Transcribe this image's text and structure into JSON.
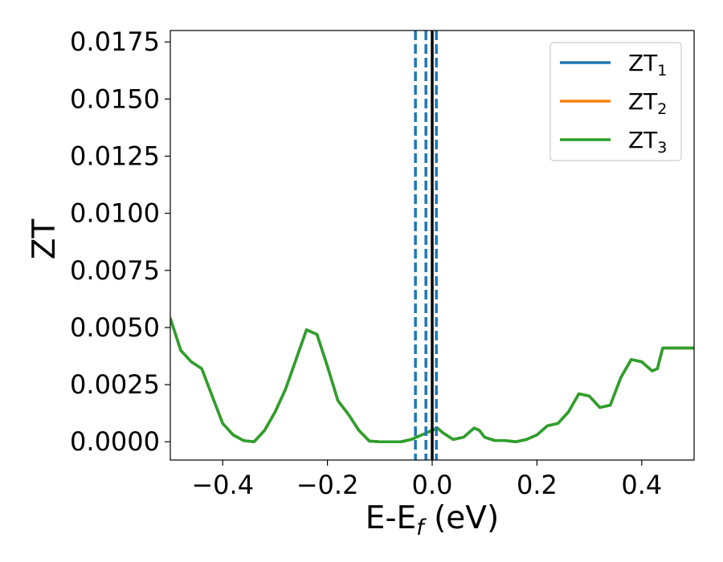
{
  "chart_data": {
    "type": "line",
    "xlabel": "E-E",
    "xlabel_sub": "f",
    "xlabel_unit": " (eV)",
    "ylabel": "ZT",
    "xlim": [
      -0.5,
      0.5
    ],
    "ylim": [
      -0.0008,
      0.018
    ],
    "xticks": [
      -0.4,
      -0.2,
      0.0,
      0.2,
      0.4
    ],
    "xtick_labels": [
      "−0.4",
      "−0.2",
      "0.0",
      "0.2",
      "0.4"
    ],
    "yticks": [
      0.0,
      0.0025,
      0.005,
      0.0075,
      0.01,
      0.0125,
      0.015,
      0.0175
    ],
    "ytick_labels": [
      "0.0000",
      "0.0025",
      "0.0050",
      "0.0075",
      "0.0100",
      "0.0125",
      "0.0150",
      "0.0175"
    ],
    "grid": false,
    "legend_position": "top-right",
    "series": [
      {
        "name": "ZT",
        "sub": "1",
        "color": "#1f77b4",
        "x": [
          -0.5,
          -0.48,
          -0.46,
          -0.44,
          -0.42,
          -0.4,
          -0.38,
          -0.36,
          -0.34,
          -0.32,
          -0.3,
          -0.28,
          -0.26,
          -0.24,
          -0.22,
          -0.2,
          -0.18,
          -0.16,
          -0.14,
          -0.12,
          -0.1,
          -0.08,
          -0.06,
          -0.04,
          -0.02,
          0.0,
          0.01,
          0.02,
          0.04,
          0.06,
          0.08,
          0.09,
          0.1,
          0.12,
          0.14,
          0.16,
          0.18,
          0.2,
          0.22,
          0.24,
          0.26,
          0.28,
          0.3,
          0.32,
          0.34,
          0.36,
          0.38,
          0.4,
          0.42,
          0.43,
          0.44,
          0.46,
          0.48,
          0.5
        ],
        "y": [
          0.0054,
          0.004,
          0.0035,
          0.0032,
          0.002,
          0.0008,
          0.0003,
          5e-05,
          0.0,
          0.0005,
          0.0013,
          0.0023,
          0.0036,
          0.0049,
          0.0047,
          0.0033,
          0.0018,
          0.0012,
          0.0005,
          3e-05,
          0.0,
          0.0,
          0.0,
          0.0001,
          0.0003,
          0.0005,
          0.0006,
          0.0004,
          0.0001,
          0.0002,
          0.0006,
          0.0005,
          0.0002,
          5e-05,
          5e-05,
          0.0,
          0.0001,
          0.0003,
          0.0007,
          0.0008,
          0.0013,
          0.0021,
          0.002,
          0.0015,
          0.0016,
          0.0028,
          0.0036,
          0.0035,
          0.0031,
          0.0032,
          0.0041,
          0.0041,
          0.0041,
          0.0041
        ]
      },
      {
        "name": "ZT",
        "sub": "2",
        "color": "#ff7f0e",
        "x": [
          -0.5,
          -0.48,
          -0.46,
          -0.44,
          -0.42,
          -0.4,
          -0.38,
          -0.36,
          -0.34,
          -0.32,
          -0.3,
          -0.28,
          -0.26,
          -0.24,
          -0.22,
          -0.2,
          -0.18,
          -0.16,
          -0.14,
          -0.12,
          -0.1,
          -0.08,
          -0.06,
          -0.04,
          -0.02,
          0.0,
          0.01,
          0.02,
          0.04,
          0.06,
          0.08,
          0.09,
          0.1,
          0.12,
          0.14,
          0.16,
          0.18,
          0.2,
          0.22,
          0.24,
          0.26,
          0.28,
          0.3,
          0.32,
          0.34,
          0.36,
          0.38,
          0.4,
          0.42,
          0.43,
          0.44,
          0.46,
          0.48,
          0.5
        ],
        "y": [
          0.0054,
          0.004,
          0.0035,
          0.0032,
          0.002,
          0.0008,
          0.0003,
          5e-05,
          0.0,
          0.0005,
          0.0013,
          0.0023,
          0.0036,
          0.0049,
          0.0047,
          0.0033,
          0.0018,
          0.0012,
          0.0005,
          3e-05,
          0.0,
          0.0,
          0.0,
          0.0001,
          0.0003,
          0.0005,
          0.0006,
          0.0004,
          0.0001,
          0.0002,
          0.0006,
          0.0005,
          0.0002,
          5e-05,
          5e-05,
          0.0,
          0.0001,
          0.0003,
          0.0007,
          0.0008,
          0.0013,
          0.0021,
          0.002,
          0.0015,
          0.0016,
          0.0028,
          0.0036,
          0.0035,
          0.0031,
          0.0032,
          0.0041,
          0.0041,
          0.0041,
          0.0041
        ]
      },
      {
        "name": "ZT",
        "sub": "3",
        "color": "#2ca02c",
        "x": [
          -0.5,
          -0.48,
          -0.46,
          -0.44,
          -0.42,
          -0.4,
          -0.38,
          -0.36,
          -0.34,
          -0.32,
          -0.3,
          -0.28,
          -0.26,
          -0.24,
          -0.22,
          -0.2,
          -0.18,
          -0.16,
          -0.14,
          -0.12,
          -0.1,
          -0.08,
          -0.06,
          -0.04,
          -0.02,
          0.0,
          0.01,
          0.02,
          0.04,
          0.06,
          0.08,
          0.09,
          0.1,
          0.12,
          0.14,
          0.16,
          0.18,
          0.2,
          0.22,
          0.24,
          0.26,
          0.28,
          0.3,
          0.32,
          0.34,
          0.36,
          0.38,
          0.4,
          0.42,
          0.43,
          0.44,
          0.46,
          0.48,
          0.5
        ],
        "y": [
          0.0054,
          0.004,
          0.0035,
          0.0032,
          0.002,
          0.0008,
          0.0003,
          5e-05,
          0.0,
          0.0005,
          0.0013,
          0.0023,
          0.0036,
          0.0049,
          0.0047,
          0.0033,
          0.0018,
          0.0012,
          0.0005,
          3e-05,
          0.0,
          0.0,
          0.0,
          0.0001,
          0.0003,
          0.0005,
          0.0006,
          0.0004,
          0.0001,
          0.0002,
          0.0006,
          0.0005,
          0.0002,
          5e-05,
          5e-05,
          0.0,
          0.0001,
          0.0003,
          0.0007,
          0.0008,
          0.0013,
          0.0021,
          0.002,
          0.0015,
          0.0016,
          0.0028,
          0.0036,
          0.0035,
          0.0031,
          0.0032,
          0.0041,
          0.0041,
          0.0041,
          0.0041
        ]
      }
    ],
    "vertical_lines": [
      {
        "x": -0.032,
        "style": "dashed",
        "color": "#1f77b4"
      },
      {
        "x": -0.012,
        "style": "dashed",
        "color": "#1f77b4"
      },
      {
        "x": 0.0,
        "style": "solid",
        "color": "#000000"
      },
      {
        "x": 0.008,
        "style": "dashed",
        "color": "#1f77b4"
      }
    ]
  }
}
